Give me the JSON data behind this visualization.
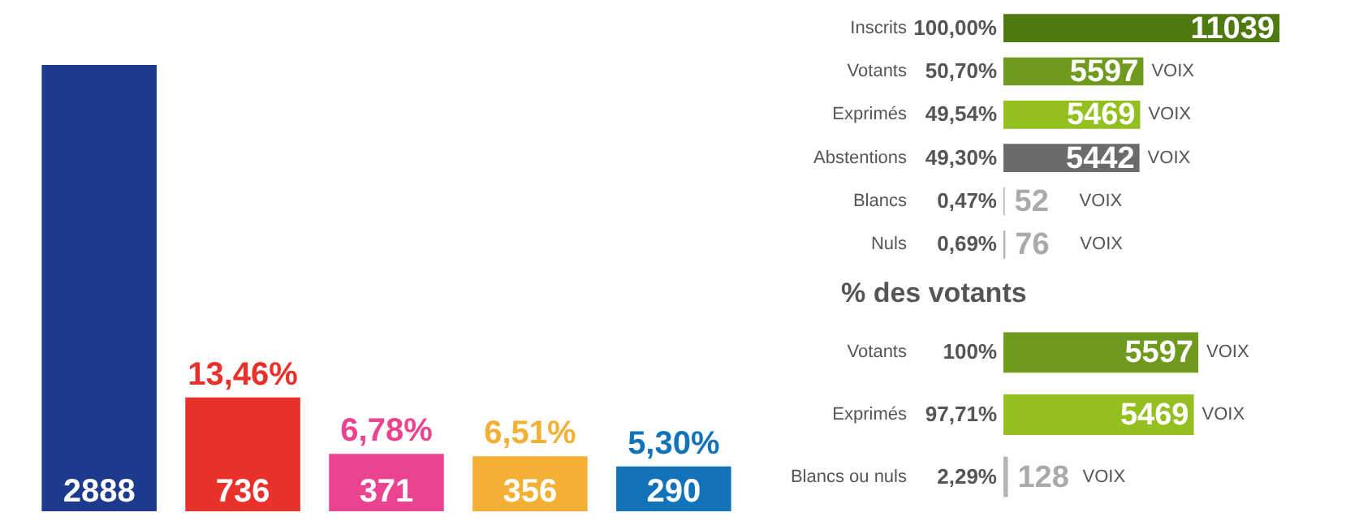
{
  "chart_data": [
    {
      "type": "bar",
      "categories": [
        null,
        null,
        null,
        null,
        null
      ],
      "values": [
        2888,
        736,
        371,
        356,
        290
      ],
      "colors": [
        "#1e3a8c",
        "#e8312b",
        "#ea4490",
        "#f4b034",
        "#1273bb"
      ],
      "data_labels": true,
      "annotations": [
        "13,46%",
        "6,78%",
        "6,51%",
        "5,30%"
      ]
    },
    {
      "type": "bar",
      "orientation": "horizontal",
      "categories": [
        "Inscrits",
        "Votants",
        "Exprimés",
        "Abstentions",
        "Blancs",
        "Nuls"
      ],
      "values": [
        11039,
        5597,
        5469,
        5442,
        52,
        76
      ],
      "colors": [
        "#4f7a12",
        "#6f9a1e",
        "#93c01f",
        "#6b6b6b",
        "#b3b3b3",
        "#b3b3b3"
      ],
      "data_labels": true,
      "annotations": [
        "100,00%",
        "50,70%",
        "49,54%",
        "49,30%",
        "0,47%",
        "0,69%",
        "VOIX",
        "VOIX",
        "VOIX",
        "VOIX",
        "VOIX"
      ]
    },
    {
      "type": "bar",
      "orientation": "horizontal",
      "title": "% des votants",
      "categories": [
        "Votants",
        "Exprimés",
        "Blancs ou nuls"
      ],
      "values": [
        5597,
        5469,
        128
      ],
      "colors": [
        "#6f9a1e",
        "#93c01f",
        "#b3b3b3"
      ],
      "data_labels": true,
      "annotations": [
        "100%",
        "97,71%",
        "2,29%",
        "VOIX",
        "VOIX",
        "VOIX"
      ]
    }
  ]
}
